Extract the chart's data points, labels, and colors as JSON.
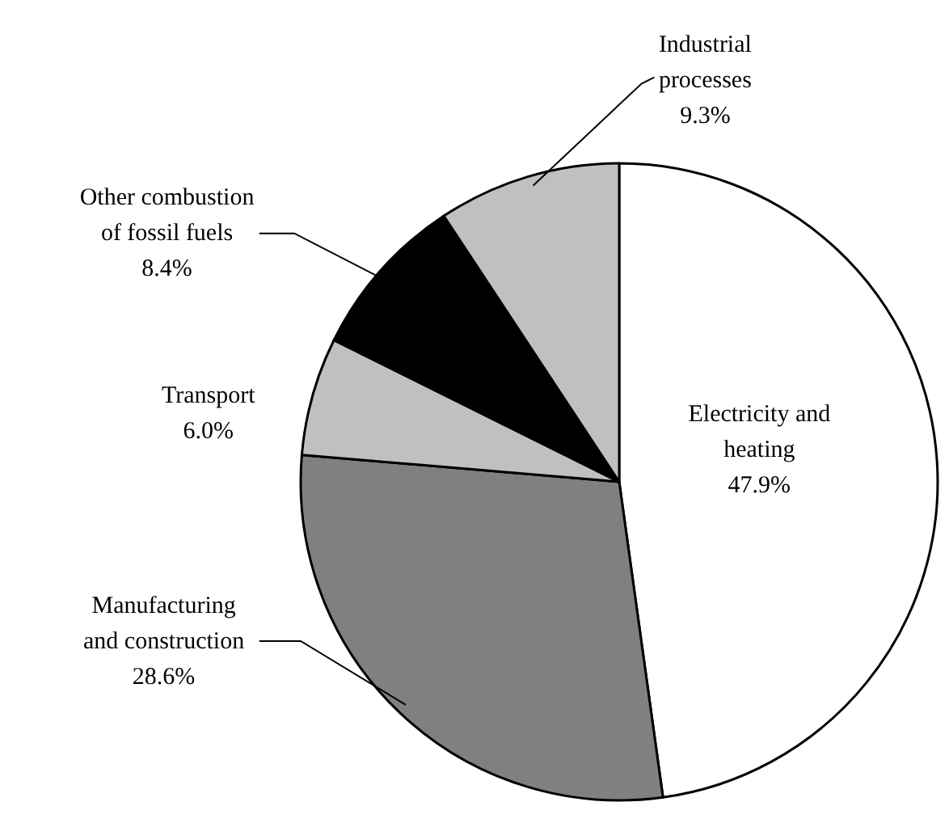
{
  "chart_data": {
    "type": "pie",
    "categories": [
      "Electricity and heating",
      "Manufacturing and construction",
      "Transport",
      "Other combustion of fossil fuels",
      "Industrial processes"
    ],
    "values": [
      47.9,
      28.6,
      6.0,
      8.4,
      9.3
    ],
    "value_labels": [
      "47.9%",
      "28.6%",
      "6.0%",
      "8.4%",
      "9.3%"
    ],
    "colors": [
      "#ffffff",
      "#808080",
      "#c0c0c0",
      "#000000",
      "#c0c0c0"
    ]
  }
}
